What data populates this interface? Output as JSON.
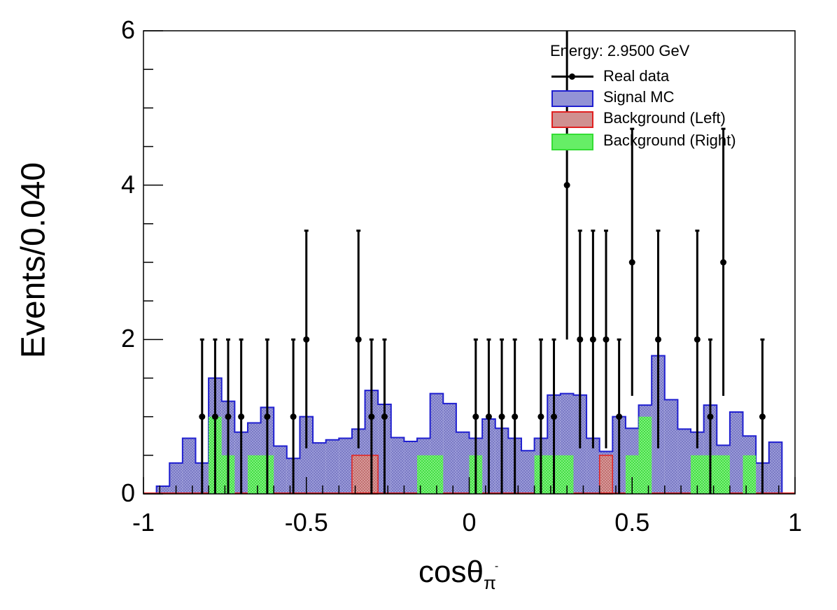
{
  "chart_data": {
    "type": "bar",
    "xlabel_main": "cosθ",
    "xlabel_sub": "π",
    "xlabel_sup": "-",
    "ylabel": "Events/0.040",
    "xlim": [
      -1,
      1
    ],
    "ylim": [
      0,
      6
    ],
    "x_ticks": [
      "-1",
      "-0.5",
      "0",
      "0.5",
      "1"
    ],
    "y_ticks": [
      "0",
      "2",
      "4",
      "6"
    ],
    "bin_width": 0.04,
    "legend_title": "Energy: 2.9500 GeV",
    "legend_position": "top-right",
    "legend": {
      "data": "Real data",
      "signal": "Signal MC",
      "bkg_left": "Background (Left)",
      "bkg_right": "Background (Right)"
    },
    "colors": {
      "signal_edge": "#1f1fd0",
      "signal_fill": "#8f8fd8",
      "bkg_left_edge": "#e02020",
      "bkg_left_fill": "#d48a8a",
      "bkg_right_edge": "#33dd33",
      "bkg_right_fill": "#66ee66",
      "data": "#000000"
    },
    "signal_mc": {
      "x_start": -0.96,
      "values": [
        0.1,
        0.4,
        0.72,
        0.4,
        1.5,
        1.2,
        0.8,
        0.92,
        1.12,
        0.62,
        0.46,
        1.0,
        0.66,
        0.7,
        0.72,
        0.84,
        1.34,
        1.16,
        0.73,
        0.68,
        0.72,
        1.3,
        1.17,
        0.8,
        0.72,
        0.97,
        0.85,
        0.72,
        0.56,
        0.72,
        1.28,
        1.3,
        1.28,
        0.72,
        0.55,
        1.0,
        0.85,
        1.15,
        1.79,
        1.22,
        0.84,
        0.8,
        1.15,
        0.63,
        1.06,
        0.75,
        0.4,
        0.67
      ]
    },
    "background_left": [
      {
        "x_low": -0.36,
        "x_high": -0.28,
        "value": 0.5
      },
      {
        "x_low": 0.4,
        "x_high": 0.44,
        "value": 0.5
      }
    ],
    "background_right": [
      {
        "x_low": -0.8,
        "x_high": -0.76,
        "value": 1.0
      },
      {
        "x_low": -0.76,
        "x_high": -0.72,
        "value": 0.5
      },
      {
        "x_low": -0.68,
        "x_high": -0.6,
        "value": 0.5
      },
      {
        "x_low": -0.16,
        "x_high": -0.08,
        "value": 0.5
      },
      {
        "x_low": 0.0,
        "x_high": 0.04,
        "value": 0.5
      },
      {
        "x_low": 0.2,
        "x_high": 0.32,
        "value": 0.5
      },
      {
        "x_low": 0.48,
        "x_high": 0.52,
        "value": 0.5
      },
      {
        "x_low": 0.52,
        "x_high": 0.56,
        "value": 1.0
      },
      {
        "x_low": 0.68,
        "x_high": 0.72,
        "value": 0.5
      },
      {
        "x_low": 0.72,
        "x_high": 0.8,
        "value": 0.5
      },
      {
        "x_low": 0.84,
        "x_high": 0.88,
        "value": 0.5
      }
    ],
    "real_data": {
      "x": [
        -0.82,
        -0.78,
        -0.74,
        -0.7,
        -0.62,
        -0.54,
        -0.5,
        -0.34,
        -0.3,
        -0.26,
        0.02,
        0.06,
        0.1,
        0.14,
        0.22,
        0.26,
        0.3,
        0.34,
        0.38,
        0.42,
        0.46,
        0.5,
        0.58,
        0.7,
        0.74,
        0.78,
        0.9
      ],
      "y": [
        1,
        1,
        1,
        1,
        1,
        1,
        2,
        2,
        1,
        1,
        1,
        1,
        1,
        1,
        1,
        1,
        4,
        2,
        2,
        2,
        1,
        3,
        2,
        2,
        1,
        3,
        1
      ],
      "err_up": [
        1,
        1,
        1,
        1,
        1,
        1,
        1.41,
        1.41,
        1,
        1,
        1,
        1,
        1,
        1,
        1,
        1,
        2,
        1.41,
        1.41,
        1.41,
        1,
        1.73,
        1.41,
        1.41,
        1,
        1.73,
        1
      ],
      "err_down": [
        1,
        1,
        1,
        1,
        1,
        1,
        1.41,
        1.41,
        1,
        1,
        1,
        1,
        1,
        1,
        1,
        1,
        2,
        1.41,
        1.41,
        1.41,
        1,
        1.73,
        1.41,
        1.41,
        1,
        1.73,
        1
      ]
    }
  }
}
